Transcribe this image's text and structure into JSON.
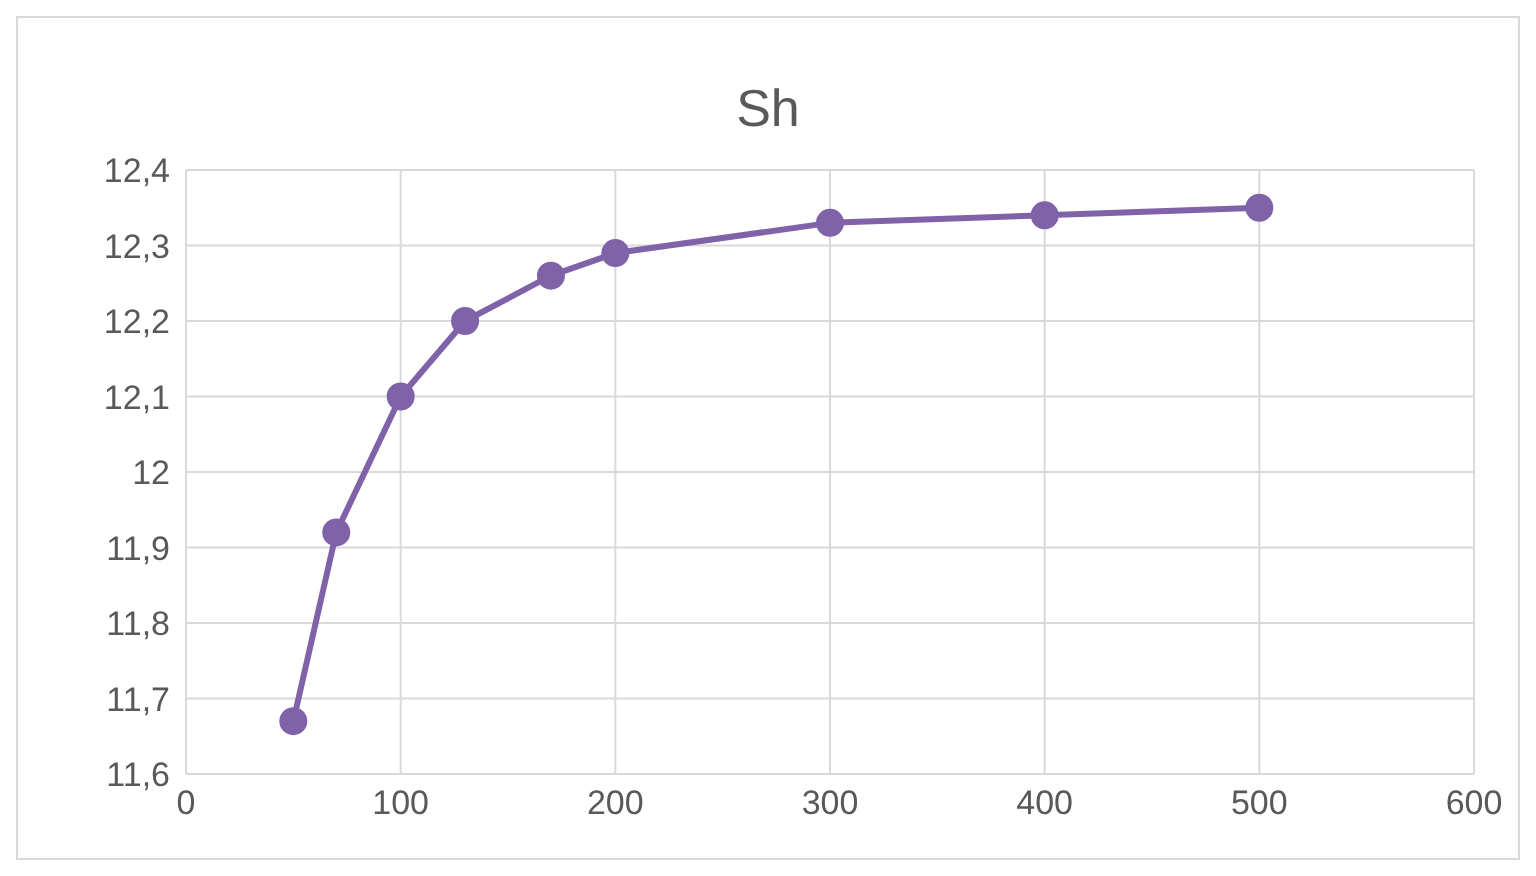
{
  "chart_data": {
    "type": "line",
    "title": "Sh",
    "x": [
      50,
      70,
      100,
      130,
      170,
      200,
      300,
      400,
      500
    ],
    "series": [
      {
        "color": "#7f62a8",
        "values": [
          11.67,
          11.92,
          12.1,
          12.2,
          12.26,
          12.29,
          12.33,
          12.34,
          12.35
        ]
      }
    ],
    "xlim": [
      0,
      600
    ],
    "xticks": [
      0,
      100,
      200,
      300,
      400,
      500,
      600
    ],
    "ylim": [
      11.6,
      12.4
    ],
    "yticks": [
      {
        "value": 11.6,
        "label": "11,6"
      },
      {
        "value": 11.7,
        "label": "11,7"
      },
      {
        "value": 11.8,
        "label": "11,8"
      },
      {
        "value": 11.9,
        "label": "11,9"
      },
      {
        "value": 12,
        "label": "12"
      },
      {
        "value": 12.1,
        "label": "12,1"
      },
      {
        "value": 12.2,
        "label": "12,2"
      },
      {
        "value": 12.3,
        "label": "12,3"
      },
      {
        "value": 12.4,
        "label": "12,4"
      }
    ],
    "grid": true,
    "marker": "circle",
    "line_style": "solid"
  }
}
